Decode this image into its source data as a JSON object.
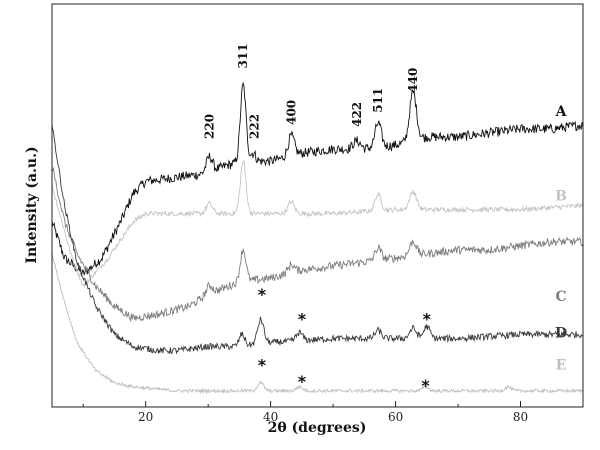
{
  "chart_data": {
    "type": "line",
    "title": "",
    "xlabel": "2θ (degrees)",
    "ylabel": "Intensity (a.u.)",
    "xlim": [
      5,
      90
    ],
    "x_ticks": [
      20,
      40,
      60,
      80
    ],
    "y_ticks": "none",
    "grid": false,
    "legend": "none",
    "series": [
      {
        "name": "A",
        "color": "#111111",
        "baseline": [
          [
            5,
            0.46
          ],
          [
            7,
            0.37
          ],
          [
            10,
            0.33
          ],
          [
            13,
            0.37
          ],
          [
            16,
            0.46
          ],
          [
            18,
            0.53
          ],
          [
            20,
            0.56
          ],
          [
            25,
            0.57
          ],
          [
            30,
            0.58
          ],
          [
            33,
            0.6
          ],
          [
            36,
            0.61
          ],
          [
            40,
            0.61
          ],
          [
            45,
            0.63
          ],
          [
            50,
            0.64
          ],
          [
            55,
            0.64
          ],
          [
            60,
            0.65
          ],
          [
            65,
            0.67
          ],
          [
            70,
            0.67
          ],
          [
            75,
            0.68
          ],
          [
            80,
            0.69
          ],
          [
            85,
            0.69
          ],
          [
            90,
            0.7
          ]
        ],
        "peaks": [
          [
            30.2,
            0.04,
            0.5
          ],
          [
            35.6,
            0.19,
            0.45
          ],
          [
            37.2,
            0.02,
            0.4
          ],
          [
            43.3,
            0.05,
            0.5
          ],
          [
            53.8,
            0.02,
            0.6
          ],
          [
            57.2,
            0.06,
            0.5
          ],
          [
            62.8,
            0.12,
            0.55
          ]
        ],
        "noise": 0.012
      },
      {
        "name": "B",
        "color": "#c4c4c4",
        "baseline": [
          [
            5,
            0.55
          ],
          [
            8,
            0.38
          ],
          [
            10,
            0.3
          ],
          [
            14,
            0.37
          ],
          [
            18,
            0.46
          ],
          [
            20,
            0.48
          ],
          [
            25,
            0.48
          ],
          [
            30,
            0.48
          ],
          [
            40,
            0.48
          ],
          [
            50,
            0.48
          ],
          [
            60,
            0.49
          ],
          [
            70,
            0.49
          ],
          [
            80,
            0.49
          ],
          [
            90,
            0.5
          ]
        ],
        "peaks": [
          [
            30.2,
            0.025,
            0.5
          ],
          [
            35.6,
            0.13,
            0.45
          ],
          [
            43.3,
            0.03,
            0.5
          ],
          [
            57.2,
            0.04,
            0.5
          ],
          [
            62.8,
            0.045,
            0.55
          ]
        ],
        "noise": 0.006
      },
      {
        "name": "C",
        "color": "#7e7e7e",
        "baseline": [
          [
            5,
            0.6
          ],
          [
            7,
            0.46
          ],
          [
            9,
            0.38
          ],
          [
            12,
            0.3
          ],
          [
            15,
            0.25
          ],
          [
            18,
            0.22
          ],
          [
            22,
            0.23
          ],
          [
            27,
            0.25
          ],
          [
            30,
            0.28
          ],
          [
            35,
            0.31
          ],
          [
            40,
            0.32
          ],
          [
            45,
            0.34
          ],
          [
            50,
            0.35
          ],
          [
            55,
            0.36
          ],
          [
            60,
            0.37
          ],
          [
            65,
            0.38
          ],
          [
            70,
            0.39
          ],
          [
            75,
            0.39
          ],
          [
            80,
            0.4
          ],
          [
            85,
            0.41
          ],
          [
            90,
            0.41
          ]
        ],
        "peaks": [
          [
            30.2,
            0.02,
            0.5
          ],
          [
            35.6,
            0.08,
            0.45
          ],
          [
            43.3,
            0.02,
            0.5
          ],
          [
            57.2,
            0.03,
            0.5
          ],
          [
            62.8,
            0.035,
            0.55
          ]
        ],
        "noise": 0.01
      },
      {
        "name": "D",
        "color": "#3a3a3a",
        "baseline": [
          [
            5,
            0.7
          ],
          [
            7,
            0.5
          ],
          [
            9,
            0.36
          ],
          [
            12,
            0.25
          ],
          [
            15,
            0.18
          ],
          [
            18,
            0.15
          ],
          [
            22,
            0.14
          ],
          [
            25,
            0.14
          ],
          [
            30,
            0.15
          ],
          [
            35,
            0.15
          ],
          [
            40,
            0.16
          ],
          [
            50,
            0.17
          ],
          [
            60,
            0.17
          ],
          [
            70,
            0.17
          ],
          [
            80,
            0.18
          ],
          [
            90,
            0.18
          ]
        ],
        "peaks": [
          [
            35.4,
            0.03,
            0.45
          ],
          [
            38.4,
            0.06,
            0.5
          ],
          [
            44.6,
            0.02,
            0.5
          ],
          [
            57.2,
            0.02,
            0.5
          ],
          [
            62.8,
            0.025,
            0.55
          ],
          [
            65.0,
            0.03,
            0.5
          ]
        ],
        "noise": 0.008
      },
      {
        "name": "E",
        "color": "#bdbdbd",
        "baseline": [
          [
            5,
            0.38
          ],
          [
            7,
            0.26
          ],
          [
            9,
            0.16
          ],
          [
            12,
            0.09
          ],
          [
            15,
            0.06
          ],
          [
            18,
            0.05
          ],
          [
            25,
            0.04
          ],
          [
            35,
            0.04
          ],
          [
            50,
            0.04
          ],
          [
            70,
            0.04
          ],
          [
            90,
            0.04
          ]
        ],
        "peaks": [
          [
            38.4,
            0.02,
            0.5
          ],
          [
            44.6,
            0.01,
            0.5
          ],
          [
            64.8,
            0.01,
            0.5
          ],
          [
            78.0,
            0.01,
            0.5
          ]
        ],
        "noise": 0.004
      }
    ],
    "series_labels": [
      {
        "text": "A",
        "color": "#111111",
        "x": 86.5,
        "y": 0.735
      },
      {
        "text": "B",
        "color": "#c4c4c4",
        "x": 86.5,
        "y": 0.525
      },
      {
        "text": "C",
        "color": "#7e7e7e",
        "x": 86.5,
        "y": 0.275
      },
      {
        "text": "D",
        "color": "#3a3a3a",
        "x": 86.5,
        "y": 0.185
      },
      {
        "text": "E",
        "color": "#bdbdbd",
        "x": 86.5,
        "y": 0.105
      }
    ],
    "peak_labels": [
      {
        "text": "220",
        "x": 30.2,
        "y": 0.665,
        "rotate": true
      },
      {
        "text": "311",
        "x": 35.6,
        "y": 0.84,
        "rotate": true
      },
      {
        "text": "222",
        "x": 37.4,
        "y": 0.665,
        "rotate": true
      },
      {
        "text": "400",
        "x": 43.3,
        "y": 0.7,
        "rotate": true
      },
      {
        "text": "422",
        "x": 53.8,
        "y": 0.695,
        "rotate": true
      },
      {
        "text": "511",
        "x": 57.2,
        "y": 0.73,
        "rotate": true
      },
      {
        "text": "440",
        "x": 62.8,
        "y": 0.78,
        "rotate": true
      }
    ],
    "star_markers": [
      {
        "text": "*",
        "x": 38.6,
        "y": 0.28
      },
      {
        "text": "*",
        "x": 45.0,
        "y": 0.22
      },
      {
        "text": "*",
        "x": 65.0,
        "y": 0.22
      },
      {
        "text": "*",
        "x": 38.6,
        "y": 0.105
      },
      {
        "text": "*",
        "x": 45.0,
        "y": 0.065
      },
      {
        "text": "*",
        "x": 64.8,
        "y": 0.055
      }
    ]
  }
}
